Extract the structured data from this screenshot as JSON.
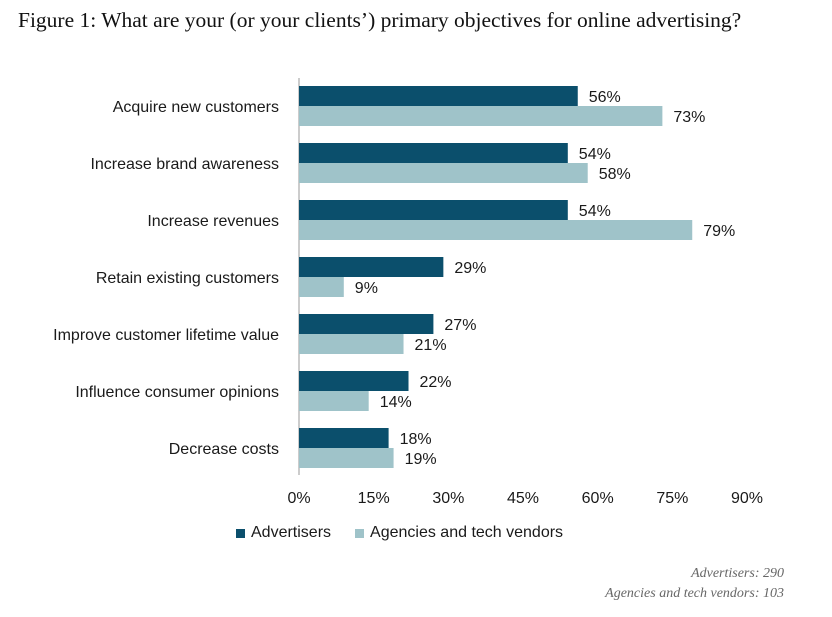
{
  "chart_data": {
    "type": "bar",
    "orientation": "horizontal",
    "title": "Figure 1: What are your (or your clients’) primary objectives for online advertising?",
    "categories": [
      "Acquire new customers",
      "Increase brand awareness",
      "Increase revenues",
      "Retain existing customers",
      "Improve customer lifetime value",
      "Influence consumer opinions",
      "Decrease costs"
    ],
    "series": [
      {
        "name": "Advertisers",
        "color": "#0b4f6c",
        "values": [
          56,
          54,
          54,
          29,
          27,
          22,
          18
        ],
        "labels": [
          "56%",
          "54%",
          "54%",
          "29%",
          "27%",
          "22%",
          "18%"
        ]
      },
      {
        "name": "Agencies and tech vendors",
        "color": "#9fc3c9",
        "values": [
          73,
          58,
          79,
          9,
          21,
          14,
          19
        ],
        "labels": [
          "73%",
          "58%",
          "79%",
          "9%",
          "21%",
          "14%",
          "19%"
        ]
      }
    ],
    "xlim": [
      0,
      90
    ],
    "ticks": [
      0,
      15,
      30,
      45,
      60,
      75,
      90
    ],
    "tick_labels": [
      "0%",
      "15%",
      "30%",
      "45%",
      "60%",
      "75%",
      "90%"
    ],
    "grid": false,
    "legend_position": "bottom-left"
  },
  "notes": {
    "advertisers": "Advertisers: 290",
    "agencies": "Agencies and tech vendors: 103"
  }
}
